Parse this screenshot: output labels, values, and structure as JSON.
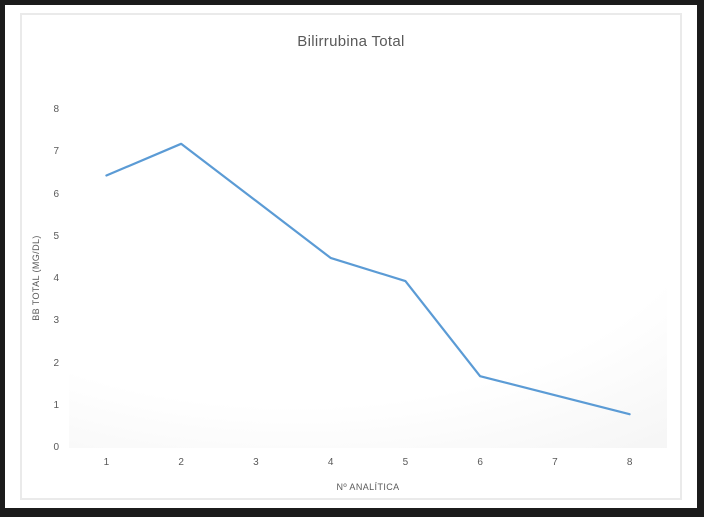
{
  "chart_data": {
    "type": "line",
    "title": "Bilirrubina Total",
    "xlabel": "Nº ANALÍTICA",
    "ylabel": "BB TOTAL (MG/DL)",
    "categories": [
      "1",
      "2",
      "3",
      "4",
      "5",
      "6",
      "7",
      "8"
    ],
    "values": [
      6.45,
      7.2,
      5.85,
      4.5,
      3.95,
      1.7,
      1.25,
      0.8
    ],
    "ylim": [
      0,
      8
    ],
    "ytick_labels": [
      "0",
      "1",
      "2",
      "3",
      "4",
      "5",
      "6",
      "7",
      "8"
    ],
    "grid": false,
    "legend": false,
    "line_color": "#5b9bd5"
  },
  "colors": {
    "text": "#595959",
    "frame": "#1b1b1b",
    "chart_border": "#eaeaea",
    "plot_tint": "#ececec"
  }
}
